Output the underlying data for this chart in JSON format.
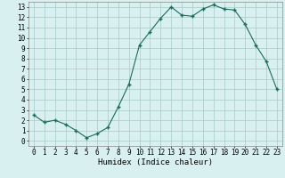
{
  "title": "",
  "xlabel": "Humidex (Indice chaleur)",
  "ylabel": "",
  "x": [
    0,
    1,
    2,
    3,
    4,
    5,
    6,
    7,
    8,
    9,
    10,
    11,
    12,
    13,
    14,
    15,
    16,
    17,
    18,
    19,
    20,
    21,
    22,
    23
  ],
  "y": [
    2.5,
    1.8,
    2.0,
    1.6,
    1.0,
    0.3,
    0.7,
    1.3,
    3.3,
    5.5,
    9.3,
    10.6,
    11.9,
    13.0,
    12.2,
    12.1,
    12.8,
    13.2,
    12.8,
    12.7,
    11.3,
    9.3,
    7.7,
    5.0
  ],
  "line_color": "#1a6b5a",
  "marker": "+",
  "background_color": "#d8f0f0",
  "grid_color": "#a8c8c8",
  "xlim": [
    -0.5,
    23.5
  ],
  "ylim": [
    -0.5,
    13.5
  ],
  "xticks": [
    0,
    1,
    2,
    3,
    4,
    5,
    6,
    7,
    8,
    9,
    10,
    11,
    12,
    13,
    14,
    15,
    16,
    17,
    18,
    19,
    20,
    21,
    22,
    23
  ],
  "yticks": [
    0,
    1,
    2,
    3,
    4,
    5,
    6,
    7,
    8,
    9,
    10,
    11,
    12,
    13
  ],
  "tick_fontsize": 5.5,
  "xlabel_fontsize": 6.5
}
